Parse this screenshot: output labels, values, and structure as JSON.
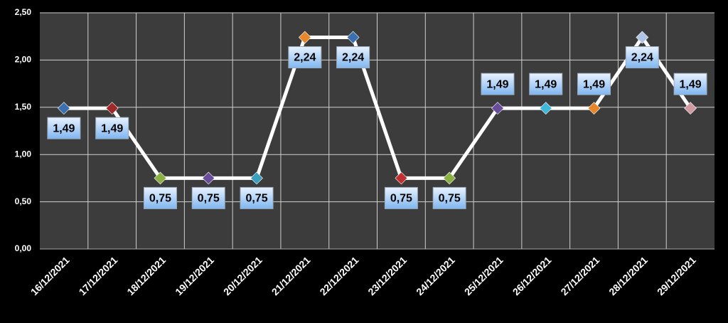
{
  "chart_data": {
    "type": "line",
    "categories": [
      "16/12/2021",
      "17/12/2021",
      "18/12/2021",
      "19/12/2021",
      "20/12/2021",
      "21/12/2021",
      "22/12/2021",
      "23/12/2021",
      "24/12/2021",
      "25/12/2021",
      "26/12/2021",
      "27/12/2021",
      "28/12/2021",
      "29/12/2021"
    ],
    "values": [
      1.49,
      1.49,
      0.75,
      0.75,
      0.75,
      2.24,
      2.24,
      0.75,
      0.75,
      1.49,
      1.49,
      1.49,
      2.24,
      1.49
    ],
    "value_labels": [
      "1,49",
      "1,49",
      "0,75",
      "0,75",
      "0,75",
      "2,24",
      "2,24",
      "0,75",
      "0,75",
      "1,49",
      "1,49",
      "1,49",
      "2,24",
      "1,49"
    ],
    "color": "#ffffff",
    "point_colors": [
      "#3a6fb0",
      "#a0282a",
      "#8bb043",
      "#6a4c9c",
      "#3aa0c0",
      "#e8862a",
      "#3a6fb0",
      "#c03030",
      "#8bb043",
      "#6a4c9c",
      "#40b8d8",
      "#e8862a",
      "#b0c4e8",
      "#d09aa0"
    ],
    "ylim": [
      0,
      2.5
    ],
    "yticks": [
      {
        "value": 0,
        "label": "0,00"
      },
      {
        "value": 0.5,
        "label": "0,50"
      },
      {
        "value": 1,
        "label": "1,00"
      },
      {
        "value": 1.5,
        "label": "1,50"
      },
      {
        "value": 2,
        "label": "2,00"
      },
      {
        "value": 2.5,
        "label": "2,50"
      }
    ],
    "grid": true
  }
}
